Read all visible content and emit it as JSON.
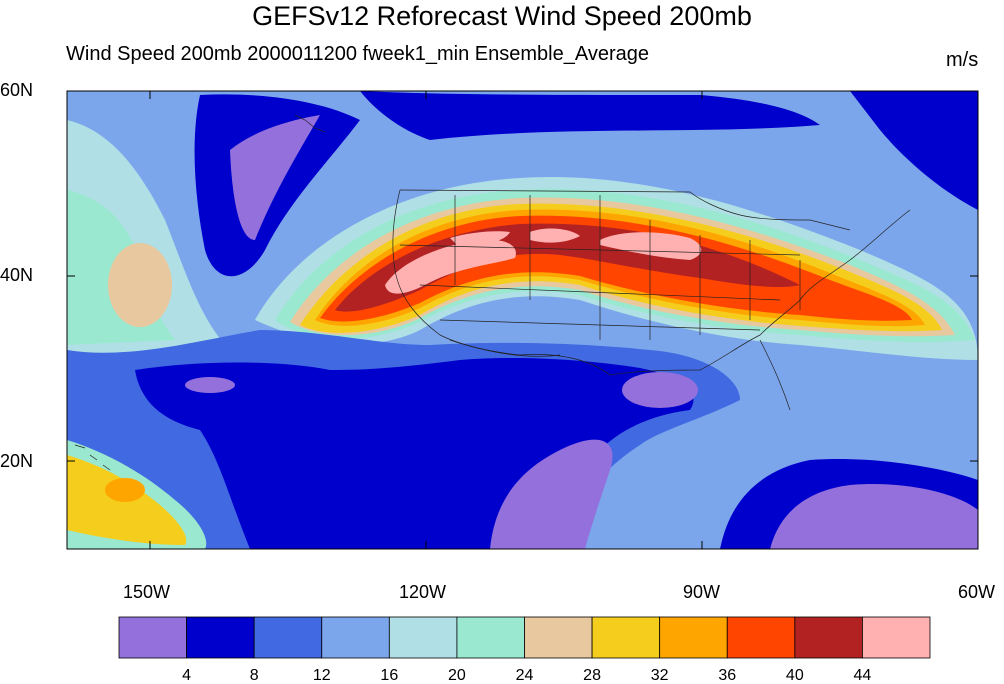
{
  "title": "GEFSv12 Reforecast Wind Speed 200mb",
  "subtitle_left": "Wind Speed 200mb   2000011200 fweek1_min Ensemble_Average",
  "subtitle_right": "m/s",
  "axes": {
    "x_ticks": [
      {
        "value": -150,
        "label": "150W"
      },
      {
        "value": -120,
        "label": "120W"
      },
      {
        "value": -90,
        "label": "90W"
      },
      {
        "value": -60,
        "label": "60W"
      }
    ],
    "y_ticks": [
      {
        "value": 60,
        "label": "60N"
      },
      {
        "value": 40,
        "label": "40N"
      },
      {
        "value": 20,
        "label": "20N"
      }
    ],
    "lon_range": [
      -159,
      -60
    ],
    "lat_range": [
      10,
      60
    ]
  },
  "colorbar": {
    "colors": [
      "#9370db",
      "#0000cd",
      "#4169e1",
      "#7ca6ec",
      "#b0e0e6",
      "#9ae8d0",
      "#e8c89e",
      "#f5ce1d",
      "#ffa500",
      "#ff4500",
      "#b22222",
      "#ffb0b0"
    ],
    "labels": [
      "4",
      "8",
      "12",
      "16",
      "20",
      "24",
      "28",
      "32",
      "36",
      "40",
      "44"
    ]
  }
}
